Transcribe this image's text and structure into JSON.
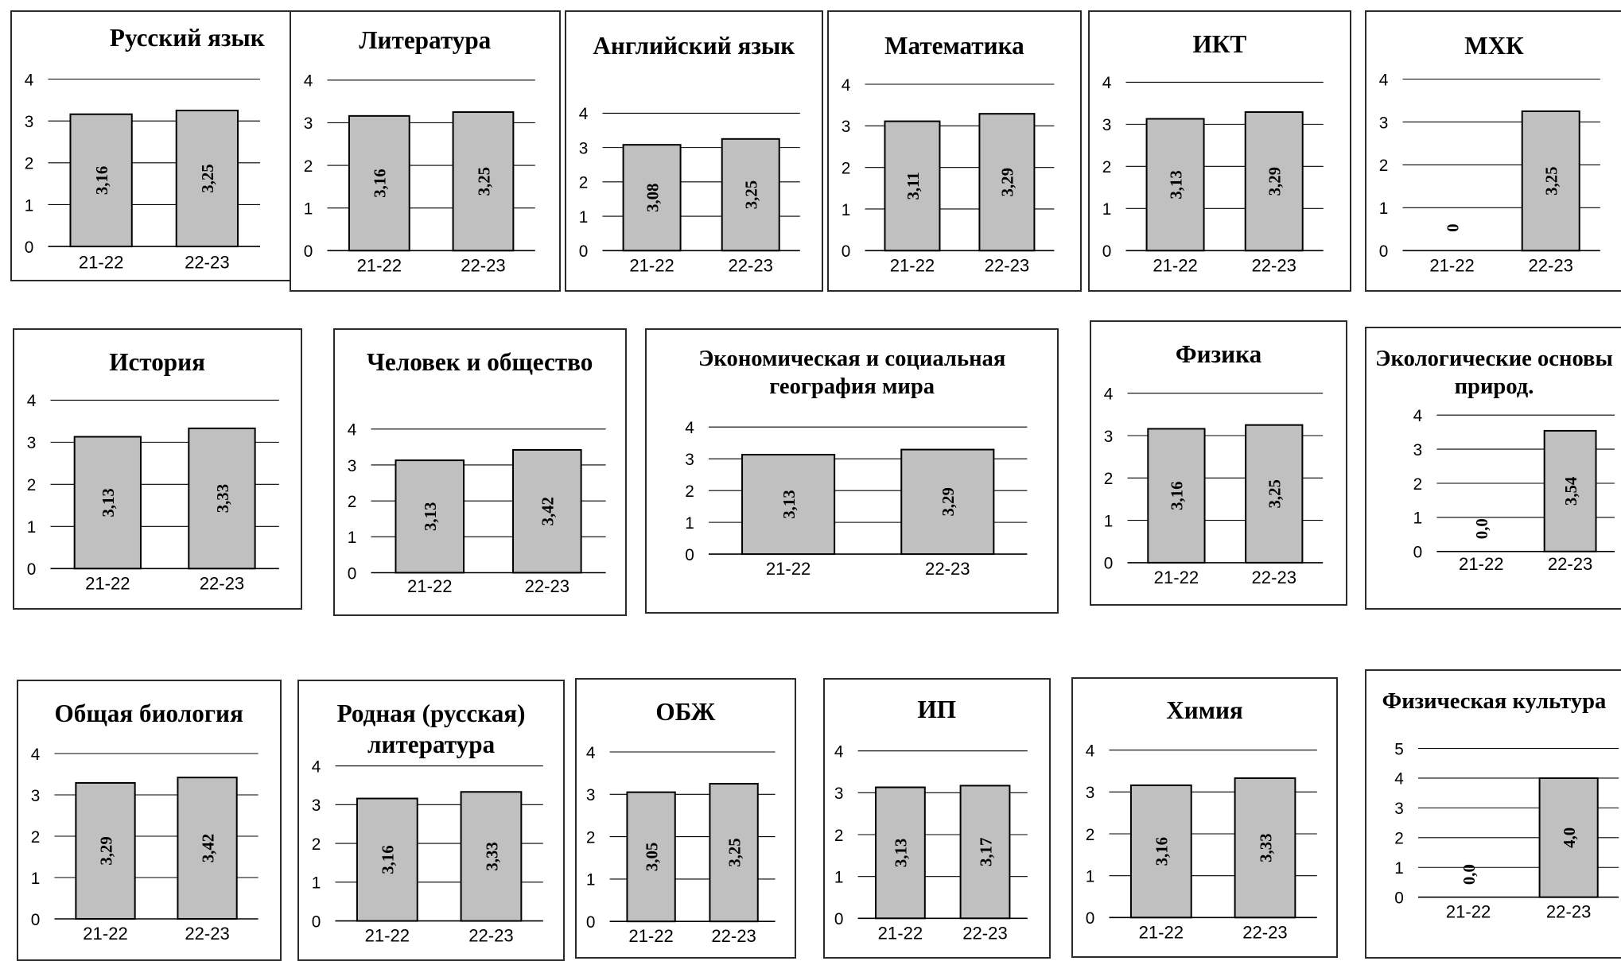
{
  "chart_data": [
    {
      "type": "bar",
      "title": "Русский язык",
      "categories": [
        "21-22",
        "22-23"
      ],
      "values": [
        3.16,
        3.25
      ],
      "data_labels": [
        "3,16",
        "3,25"
      ],
      "ylim": [
        0,
        4
      ],
      "yticks": [
        0,
        1,
        2,
        3,
        4
      ],
      "grid": true
    },
    {
      "type": "bar",
      "title": "Литература",
      "categories": [
        "21-22",
        "22-23"
      ],
      "values": [
        3.16,
        3.25
      ],
      "data_labels": [
        "3,16",
        "3,25"
      ],
      "ylim": [
        0,
        4
      ],
      "yticks": [
        0,
        1,
        2,
        3,
        4
      ],
      "grid": true
    },
    {
      "type": "bar",
      "title": "Английский язык",
      "categories": [
        "21-22",
        "22-23"
      ],
      "values": [
        3.08,
        3.25
      ],
      "data_labels": [
        "3,08",
        "3,25"
      ],
      "ylim": [
        0,
        4
      ],
      "yticks": [
        0,
        1,
        2,
        3,
        4
      ],
      "grid": true
    },
    {
      "type": "bar",
      "title": "Математика",
      "categories": [
        "21-22",
        "22-23"
      ],
      "values": [
        3.11,
        3.29
      ],
      "data_labels": [
        "3,11",
        "3,29"
      ],
      "ylim": [
        0,
        4
      ],
      "yticks": [
        0,
        1,
        2,
        3,
        4
      ],
      "grid": true
    },
    {
      "type": "bar",
      "title": "ИКТ",
      "categories": [
        "21-22",
        "22-23"
      ],
      "values": [
        3.13,
        3.29
      ],
      "data_labels": [
        "3,13",
        "3,29"
      ],
      "ylim": [
        0,
        4
      ],
      "yticks": [
        0,
        1,
        2,
        3,
        4
      ],
      "grid": true
    },
    {
      "type": "bar",
      "title": "МХК",
      "categories": [
        "21-22",
        "22-23"
      ],
      "values": [
        0,
        3.25
      ],
      "data_labels": [
        "0",
        "3,25"
      ],
      "ylim": [
        0,
        4
      ],
      "yticks": [
        0,
        1,
        2,
        3,
        4
      ],
      "grid": true
    },
    {
      "type": "bar",
      "title": "История",
      "categories": [
        "21-22",
        "22-23"
      ],
      "values": [
        3.13,
        3.33
      ],
      "data_labels": [
        "3,13",
        "3,33"
      ],
      "ylim": [
        0,
        4
      ],
      "yticks": [
        0,
        1,
        2,
        3,
        4
      ],
      "grid": true
    },
    {
      "type": "bar",
      "title": "Человек и общество",
      "categories": [
        "21-22",
        "22-23"
      ],
      "values": [
        3.13,
        3.42
      ],
      "data_labels": [
        "3,13",
        "3,42"
      ],
      "ylim": [
        0,
        4
      ],
      "yticks": [
        0,
        1,
        2,
        3,
        4
      ],
      "grid": true
    },
    {
      "type": "bar",
      "title": "Экономическая и социальная география мира",
      "categories": [
        "21-22",
        "22-23"
      ],
      "values": [
        3.13,
        3.29
      ],
      "data_labels": [
        "3,13",
        "3,29"
      ],
      "ylim": [
        0,
        4
      ],
      "yticks": [
        0,
        1,
        2,
        3,
        4
      ],
      "grid": true
    },
    {
      "type": "bar",
      "title": "Физика",
      "categories": [
        "21-22",
        "22-23"
      ],
      "values": [
        3.16,
        3.25
      ],
      "data_labels": [
        "3,16",
        "3,25"
      ],
      "ylim": [
        0,
        4
      ],
      "yticks": [
        0,
        1,
        2,
        3,
        4
      ],
      "grid": true
    },
    {
      "type": "bar",
      "title": "Экологические основы природ.",
      "categories": [
        "21-22",
        "22-23"
      ],
      "values": [
        0,
        3.54
      ],
      "data_labels": [
        "0,0",
        "3,54"
      ],
      "ylim": [
        0,
        4
      ],
      "yticks": [
        0,
        1,
        2,
        3,
        4
      ],
      "grid": true
    },
    {
      "type": "bar",
      "title": "Общая биология",
      "categories": [
        "21-22",
        "22-23"
      ],
      "values": [
        3.29,
        3.42
      ],
      "data_labels": [
        "3,29",
        "3,42"
      ],
      "ylim": [
        0,
        4
      ],
      "yticks": [
        0,
        1,
        2,
        3,
        4
      ],
      "grid": true
    },
    {
      "type": "bar",
      "title": "Родная (русская) литература",
      "categories": [
        "21-22",
        "22-23"
      ],
      "values": [
        3.16,
        3.33
      ],
      "data_labels": [
        "3,16",
        "3,33"
      ],
      "ylim": [
        0,
        4
      ],
      "yticks": [
        0,
        1,
        2,
        3,
        4
      ],
      "grid": true
    },
    {
      "type": "bar",
      "title": "ОБЖ",
      "categories": [
        "21-22",
        "22-23"
      ],
      "values": [
        3.05,
        3.25
      ],
      "data_labels": [
        "3,05",
        "3,25"
      ],
      "ylim": [
        0,
        4
      ],
      "yticks": [
        0,
        1,
        2,
        3,
        4
      ],
      "grid": true
    },
    {
      "type": "bar",
      "title": "ИП",
      "categories": [
        "21-22",
        "22-23"
      ],
      "values": [
        3.13,
        3.17
      ],
      "data_labels": [
        "3,13",
        "3,17"
      ],
      "ylim": [
        0,
        4
      ],
      "yticks": [
        0,
        1,
        2,
        3,
        4
      ],
      "grid": true
    },
    {
      "type": "bar",
      "title": "Химия",
      "categories": [
        "21-22",
        "22-23"
      ],
      "values": [
        3.16,
        3.33
      ],
      "data_labels": [
        "3,16",
        "3,33"
      ],
      "ylim": [
        0,
        4
      ],
      "yticks": [
        0,
        1,
        2,
        3,
        4
      ],
      "grid": true
    },
    {
      "type": "bar",
      "title": "Физическая культура",
      "categories": [
        "21-22",
        "22-23"
      ],
      "values": [
        0,
        4.0
      ],
      "data_labels": [
        "0,0",
        "4,0"
      ],
      "ylim": [
        0,
        5
      ],
      "yticks": [
        0,
        1,
        2,
        3,
        4,
        5
      ],
      "grid": true
    }
  ],
  "colors": {
    "bar_fill": "#c0c0c0",
    "bar_stroke": "#000000",
    "grid": "#000000",
    "text": "#000000"
  }
}
